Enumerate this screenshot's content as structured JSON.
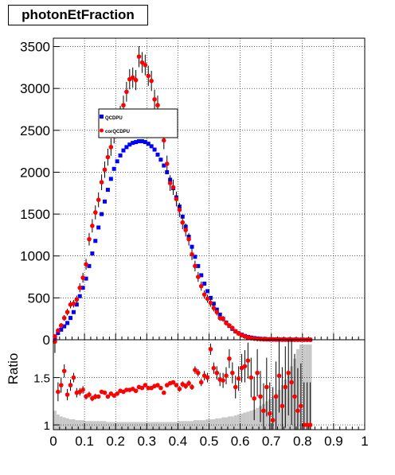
{
  "title": "photonEtFraction",
  "chart_data": [
    {
      "type": "scatter",
      "title": "photonEtFraction",
      "xlabel": "",
      "ylabel": "",
      "xlim": [
        0,
        1
      ],
      "ylim": [
        0,
        3600
      ],
      "x_ticks": [
        "0",
        "0.1",
        "0.2",
        "0.3",
        "0.4",
        "0.5",
        "0.6",
        "0.7",
        "0.8",
        "0.9",
        "1"
      ],
      "y_ticks": [
        "0",
        "500",
        "1000",
        "1500",
        "2000",
        "2500",
        "3000",
        "3500"
      ],
      "y_tick_values": [
        0,
        500,
        1000,
        1500,
        2000,
        2500,
        3000,
        3500
      ],
      "grid": true,
      "legend_position": "upper-left",
      "x": [
        0.005,
        0.015,
        0.025,
        0.035,
        0.045,
        0.055,
        0.065,
        0.075,
        0.085,
        0.095,
        0.105,
        0.115,
        0.125,
        0.135,
        0.145,
        0.155,
        0.165,
        0.175,
        0.185,
        0.195,
        0.205,
        0.215,
        0.225,
        0.235,
        0.245,
        0.255,
        0.265,
        0.275,
        0.285,
        0.295,
        0.305,
        0.315,
        0.325,
        0.335,
        0.345,
        0.355,
        0.365,
        0.375,
        0.385,
        0.395,
        0.405,
        0.415,
        0.425,
        0.435,
        0.445,
        0.455,
        0.465,
        0.475,
        0.485,
        0.495,
        0.505,
        0.515,
        0.525,
        0.535,
        0.545,
        0.555,
        0.565,
        0.575,
        0.585,
        0.595,
        0.605,
        0.615,
        0.625,
        0.635,
        0.645,
        0.655,
        0.665,
        0.675,
        0.685,
        0.695,
        0.705,
        0.715,
        0.725,
        0.735,
        0.745,
        0.755,
        0.765,
        0.775,
        0.785,
        0.795,
        0.805,
        0.815,
        0.825
      ],
      "series": [
        {
          "name": "QCDPU",
          "color": "#0000ff",
          "marker": "square",
          "values": [
            30,
            80,
            120,
            160,
            200,
            260,
            330,
            420,
            520,
            620,
            730,
            880,
            1030,
            1180,
            1340,
            1500,
            1650,
            1790,
            1920,
            2040,
            2130,
            2200,
            2260,
            2300,
            2330,
            2350,
            2360,
            2370,
            2370,
            2360,
            2340,
            2310,
            2270,
            2210,
            2150,
            2080,
            2000,
            1910,
            1810,
            1700,
            1590,
            1470,
            1350,
            1230,
            1110,
            990,
            880,
            770,
            670,
            580,
            500,
            430,
            360,
            300,
            250,
            205,
            165,
            130,
            100,
            78,
            60,
            45,
            34,
            26,
            20,
            15,
            11,
            8,
            6,
            5,
            4,
            3,
            2,
            2,
            1,
            1,
            1,
            1,
            1,
            0,
            0,
            0,
            0
          ]
        },
        {
          "name": "corQCDPU",
          "color": "#ff0000",
          "marker": "circle",
          "values": [
            40,
            110,
            170,
            260,
            330,
            420,
            430,
            480,
            620,
            740,
            900,
            1200,
            1360,
            1520,
            1670,
            1880,
            2030,
            2180,
            2300,
            2450,
            2560,
            2680,
            2800,
            2960,
            3110,
            3130,
            3100,
            3380,
            3310,
            3280,
            3150,
            3090,
            2870,
            2800,
            2600,
            2380,
            2100,
            1870,
            1820,
            1680,
            1550,
            1400,
            1310,
            1200,
            1020,
            880,
            750,
            640,
            540,
            490,
            440,
            380,
            330,
            260,
            250,
            200,
            170,
            140,
            100,
            75,
            55,
            40,
            30,
            20,
            14,
            10,
            8,
            7,
            6,
            5,
            4,
            3,
            3,
            2,
            2,
            2,
            1,
            1,
            1,
            1,
            0,
            0,
            0
          ]
        }
      ]
    },
    {
      "type": "scatter",
      "title": "",
      "xlabel": "",
      "ylabel": "Ratio",
      "xlim": [
        0,
        1
      ],
      "ylim": [
        0.95,
        1.9
      ],
      "x_ticks": [
        "0",
        "0.1",
        "0.2",
        "0.3",
        "0.4",
        "0.5",
        "0.6",
        "0.7",
        "0.8",
        "0.9",
        "1"
      ],
      "y_ticks": [
        "1",
        "1.5"
      ],
      "y_tick_values": [
        1,
        1.5
      ],
      "grid": true,
      "x": [
        0.005,
        0.015,
        0.025,
        0.035,
        0.045,
        0.055,
        0.065,
        0.075,
        0.085,
        0.095,
        0.105,
        0.115,
        0.125,
        0.135,
        0.145,
        0.155,
        0.165,
        0.175,
        0.185,
        0.195,
        0.205,
        0.215,
        0.225,
        0.235,
        0.245,
        0.255,
        0.265,
        0.275,
        0.285,
        0.295,
        0.305,
        0.315,
        0.325,
        0.335,
        0.345,
        0.355,
        0.365,
        0.375,
        0.385,
        0.395,
        0.405,
        0.415,
        0.425,
        0.435,
        0.445,
        0.455,
        0.465,
        0.475,
        0.485,
        0.495,
        0.505,
        0.515,
        0.525,
        0.535,
        0.545,
        0.555,
        0.565,
        0.575,
        0.585,
        0.595,
        0.605,
        0.615,
        0.625,
        0.635,
        0.645,
        0.655,
        0.665,
        0.675,
        0.685,
        0.695,
        0.705,
        0.715,
        0.725,
        0.735,
        0.745,
        0.755,
        0.765,
        0.775,
        0.785,
        0.795,
        0.805,
        0.815,
        0.825
      ],
      "series": [
        {
          "name": "Ratio",
          "color": "#ff0000",
          "marker": "circle",
          "values": [
            1.88,
            1.35,
            1.42,
            1.57,
            1.32,
            1.42,
            1.5,
            1.34,
            1.35,
            1.37,
            1.3,
            1.32,
            1.28,
            1.3,
            1.3,
            1.35,
            1.34,
            1.3,
            1.33,
            1.31,
            1.33,
            1.36,
            1.35,
            1.37,
            1.37,
            1.38,
            1.36,
            1.4,
            1.39,
            1.42,
            1.39,
            1.39,
            1.41,
            1.42,
            1.39,
            1.34,
            1.42,
            1.44,
            1.45,
            1.42,
            1.38,
            1.43,
            1.41,
            1.44,
            1.4,
            1.58,
            1.55,
            1.45,
            1.52,
            1.5,
            1.8,
            1.6,
            1.55,
            1.48,
            1.47,
            1.52,
            1.7,
            1.55,
            1.4,
            1.49,
            1.6,
            1.62,
            1.68,
            1.5,
            1.28,
            1.55,
            1.3,
            1.15,
            1.4,
            1.12,
            1.05,
            1.3,
            1.52,
            1.2,
            1.4,
            1.55,
            1.45,
            1.3,
            1.15,
            1.2,
            1.0,
            1.0,
            1.0
          ]
        },
        {
          "name": "Error bar half-height",
          "color": "#000000",
          "values": [
            0.12,
            0.1,
            0.08,
            0.07,
            0.06,
            0.06,
            0.05,
            0.05,
            0.04,
            0.04,
            0.03,
            0.03,
            0.03,
            0.03,
            0.02,
            0.02,
            0.02,
            0.02,
            0.02,
            0.02,
            0.02,
            0.02,
            0.02,
            0.02,
            0.02,
            0.02,
            0.02,
            0.02,
            0.02,
            0.02,
            0.02,
            0.02,
            0.02,
            0.02,
            0.02,
            0.02,
            0.02,
            0.02,
            0.02,
            0.02,
            0.03,
            0.03,
            0.03,
            0.03,
            0.03,
            0.04,
            0.04,
            0.04,
            0.05,
            0.05,
            0.06,
            0.06,
            0.07,
            0.07,
            0.08,
            0.09,
            0.1,
            0.11,
            0.12,
            0.13,
            0.15,
            0.17,
            0.19,
            0.21,
            0.23,
            0.25,
            0.27,
            0.29,
            0.31,
            0.33,
            0.35,
            0.37,
            0.39,
            0.41,
            0.43,
            0.45,
            0.45,
            0.45,
            0.45,
            0.45,
            0.45,
            0.45,
            0.45
          ]
        },
        {
          "name": "Shaded band",
          "color": "#c8c8c8",
          "values": [
            1.15,
            1.11,
            1.09,
            1.08,
            1.07,
            1.06,
            1.06,
            1.05,
            1.05,
            1.05,
            1.04,
            1.04,
            1.04,
            1.04,
            1.04,
            1.04,
            1.04,
            1.03,
            1.03,
            1.03,
            1.03,
            1.03,
            1.03,
            1.03,
            1.03,
            1.03,
            1.03,
            1.03,
            1.03,
            1.03,
            1.03,
            1.03,
            1.03,
            1.03,
            1.03,
            1.03,
            1.03,
            1.03,
            1.03,
            1.03,
            1.04,
            1.04,
            1.04,
            1.04,
            1.04,
            1.05,
            1.05,
            1.05,
            1.05,
            1.06,
            1.06,
            1.06,
            1.07,
            1.07,
            1.08,
            1.08,
            1.09,
            1.09,
            1.1,
            1.11,
            1.12,
            1.13,
            1.14,
            1.15,
            1.16,
            1.18,
            1.2,
            1.22,
            1.25,
            1.27,
            1.3,
            1.33,
            1.37,
            1.42,
            1.48,
            1.55,
            1.62,
            1.7,
            1.8,
            1.85,
            1.85,
            1.85,
            1.85
          ]
        }
      ]
    }
  ],
  "legend": [
    {
      "label": "QCDPU",
      "color": "#0000ff",
      "marker": "square"
    },
    {
      "label": "corQCDPU",
      "color": "#ff0000",
      "marker": "circle"
    }
  ]
}
